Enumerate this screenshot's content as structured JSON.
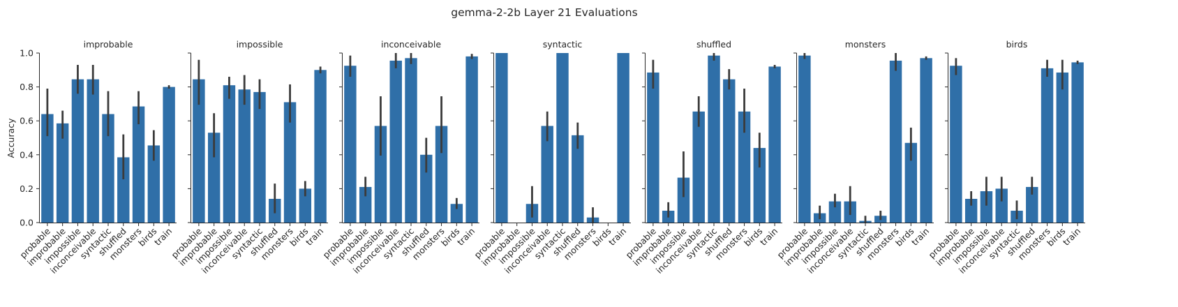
{
  "figure": {
    "title": "gemma-2-2b Layer 21 Evaluations",
    "ylabel": "Accuracy",
    "bar_color": "#2f6fa8",
    "errorbar_color": "#3b3b3b"
  },
  "chart_data": [
    {
      "type": "bar",
      "title": "improbable",
      "categories": [
        "probable",
        "improbable",
        "impossible",
        "inconceivable",
        "syntactic",
        "shuffled",
        "monsters",
        "birds",
        "train"
      ],
      "values": [
        0.64,
        0.585,
        0.845,
        0.845,
        0.64,
        0.385,
        0.685,
        0.455,
        0.8
      ],
      "error_low": [
        0.51,
        0.495,
        0.76,
        0.755,
        0.51,
        0.255,
        0.58,
        0.365,
        0.79
      ],
      "error_high": [
        0.79,
        0.66,
        0.93,
        0.93,
        0.775,
        0.52,
        0.775,
        0.545,
        0.81
      ],
      "ylim": [
        0,
        1.0
      ],
      "xlabel": "",
      "ylabel": "Accuracy"
    },
    {
      "type": "bar",
      "title": "impossible",
      "categories": [
        "probable",
        "improbable",
        "impossible",
        "inconceivable",
        "syntactic",
        "shuffled",
        "monsters",
        "birds",
        "train"
      ],
      "values": [
        0.845,
        0.53,
        0.81,
        0.785,
        0.77,
        0.14,
        0.71,
        0.2,
        0.9
      ],
      "error_low": [
        0.695,
        0.385,
        0.73,
        0.695,
        0.67,
        0.055,
        0.59,
        0.155,
        0.88
      ],
      "error_high": [
        0.96,
        0.645,
        0.86,
        0.87,
        0.845,
        0.23,
        0.815,
        0.245,
        0.92
      ],
      "ylim": [
        0,
        1.0
      ],
      "xlabel": "",
      "ylabel": ""
    },
    {
      "type": "bar",
      "title": "inconceivable",
      "categories": [
        "probable",
        "improbable",
        "impossible",
        "inconceivable",
        "syntactic",
        "shuffled",
        "monsters",
        "birds",
        "train"
      ],
      "values": [
        0.925,
        0.21,
        0.57,
        0.955,
        0.97,
        0.4,
        0.57,
        0.11,
        0.98
      ],
      "error_low": [
        0.86,
        0.155,
        0.395,
        0.91,
        0.935,
        0.295,
        0.41,
        0.08,
        0.965
      ],
      "error_high": [
        0.985,
        0.27,
        0.745,
        1.0,
        1.0,
        0.5,
        0.745,
        0.145,
        0.995
      ],
      "ylim": [
        0,
        1.0
      ],
      "xlabel": "",
      "ylabel": ""
    },
    {
      "type": "bar",
      "title": "syntactic",
      "categories": [
        "probable",
        "improbable",
        "impossible",
        "inconceivable",
        "syntactic",
        "shuffled",
        "monsters",
        "birds",
        "train"
      ],
      "values": [
        1.0,
        0.0,
        0.11,
        0.57,
        1.0,
        0.515,
        0.03,
        0.0,
        1.0
      ],
      "error_low": [
        1.0,
        0.0,
        0.03,
        0.48,
        1.0,
        0.435,
        0.0,
        0.0,
        1.0
      ],
      "error_high": [
        1.0,
        0.0,
        0.215,
        0.655,
        1.0,
        0.59,
        0.09,
        0.0,
        1.0
      ],
      "ylim": [
        0,
        1.0
      ],
      "xlabel": "",
      "ylabel": ""
    },
    {
      "type": "bar",
      "title": "shuffled",
      "categories": [
        "probable",
        "improbable",
        "impossible",
        "inconceivable",
        "syntactic",
        "shuffled",
        "monsters",
        "birds",
        "train"
      ],
      "values": [
        0.885,
        0.07,
        0.265,
        0.655,
        0.985,
        0.845,
        0.655,
        0.44,
        0.92
      ],
      "error_low": [
        0.79,
        0.03,
        0.15,
        0.565,
        0.955,
        0.785,
        0.53,
        0.325,
        0.91
      ],
      "error_high": [
        0.96,
        0.12,
        0.42,
        0.745,
        1.0,
        0.905,
        0.79,
        0.53,
        0.93
      ],
      "ylim": [
        0,
        1.0
      ],
      "xlabel": "",
      "ylabel": ""
    },
    {
      "type": "bar",
      "title": "monsters",
      "categories": [
        "probable",
        "improbable",
        "impossible",
        "inconceivable",
        "syntactic",
        "shuffled",
        "monsters",
        "birds",
        "train"
      ],
      "values": [
        0.985,
        0.055,
        0.125,
        0.125,
        0.01,
        0.04,
        0.955,
        0.47,
        0.97
      ],
      "error_low": [
        0.965,
        0.02,
        0.09,
        0.045,
        0.0,
        0.015,
        0.895,
        0.365,
        0.96
      ],
      "error_high": [
        1.0,
        0.1,
        0.17,
        0.215,
        0.04,
        0.07,
        1.0,
        0.56,
        0.98
      ],
      "ylim": [
        0,
        1.0
      ],
      "xlabel": "",
      "ylabel": ""
    },
    {
      "type": "bar",
      "title": "birds",
      "categories": [
        "probable",
        "improbable",
        "impossible",
        "inconceivable",
        "syntactic",
        "shuffled",
        "monsters",
        "birds",
        "train"
      ],
      "values": [
        0.925,
        0.14,
        0.185,
        0.2,
        0.07,
        0.21,
        0.91,
        0.885,
        0.945
      ],
      "error_low": [
        0.87,
        0.1,
        0.1,
        0.125,
        0.02,
        0.165,
        0.86,
        0.785,
        0.935
      ],
      "error_high": [
        0.97,
        0.185,
        0.27,
        0.27,
        0.13,
        0.27,
        0.96,
        0.96,
        0.955
      ],
      "ylim": [
        0,
        1.0
      ],
      "xlabel": "",
      "ylabel": ""
    }
  ]
}
